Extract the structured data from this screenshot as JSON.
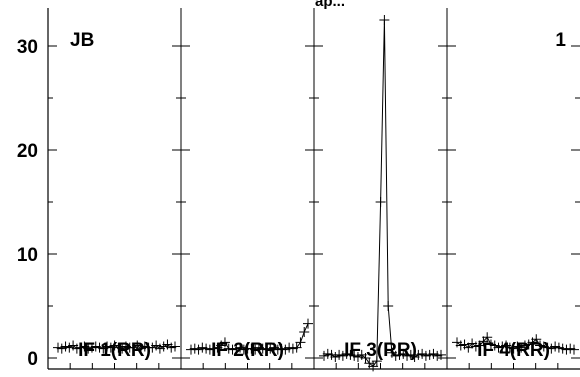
{
  "chart_data": {
    "type": "line",
    "title_fragment": "ap...",
    "corner_labels": {
      "left": "JB",
      "right": "1"
    },
    "ylim": [
      -1,
      33
    ],
    "yticks": [
      0,
      10,
      20,
      30
    ],
    "ytick_labels": [
      "0",
      "10",
      "20",
      "30"
    ],
    "grid": false,
    "panels": [
      {
        "name": "IF 1(RR)",
        "x": [
          0,
          1,
          2,
          3,
          4,
          5,
          6,
          7,
          8,
          9,
          10,
          11,
          12,
          13,
          14,
          15,
          16,
          17,
          18,
          19,
          20,
          21,
          22,
          23,
          24,
          25,
          26,
          27,
          28,
          29,
          30,
          31
        ],
        "values": [
          1.0,
          0.9,
          1.1,
          1.0,
          1.2,
          0.9,
          1.0,
          1.1,
          0.9,
          1.0,
          1.1,
          1.0,
          0.9,
          1.1,
          1.0,
          1.2,
          1.0,
          0.9,
          1.1,
          1.0,
          1.0,
          1.2,
          0.9,
          1.1,
          1.0,
          1.0,
          1.2,
          0.9,
          1.1,
          1.3,
          1.0,
          1.1
        ]
      },
      {
        "name": "IF 2(RR)",
        "x": [
          0,
          1,
          2,
          3,
          4,
          5,
          6,
          7,
          8,
          9,
          10,
          11,
          12,
          13,
          14,
          15,
          16,
          17,
          18,
          19,
          20,
          21,
          22,
          23,
          24,
          25,
          26,
          27,
          28,
          29,
          30,
          31
        ],
        "values": [
          0.8,
          0.9,
          0.8,
          1.0,
          0.9,
          0.8,
          0.9,
          1.0,
          1.2,
          1.5,
          0.9,
          0.8,
          0.9,
          1.0,
          0.8,
          0.9,
          0.9,
          0.8,
          1.0,
          0.9,
          0.8,
          0.9,
          1.0,
          0.8,
          0.9,
          0.8,
          1.0,
          0.9,
          1.0,
          1.5,
          2.5,
          3.3
        ]
      },
      {
        "name": "IF 3(RR)",
        "x": [
          0,
          1,
          2,
          3,
          4,
          5,
          6,
          7,
          8,
          9,
          10,
          11,
          12,
          13,
          14,
          15,
          16,
          17,
          18,
          19,
          20,
          21,
          22,
          23,
          24,
          25,
          26,
          27,
          28,
          29,
          30,
          31
        ],
        "values": [
          0.2,
          0.4,
          0.3,
          0.1,
          0.3,
          0.2,
          0.4,
          0.3,
          0.2,
          0.1,
          0.3,
          0.0,
          -0.5,
          -0.8,
          -0.3,
          15.0,
          32.5,
          5.0,
          0.5,
          0.2,
          0.3,
          0.4,
          0.2,
          0.3,
          0.1,
          0.3,
          0.4,
          0.2,
          0.3,
          0.4,
          0.2,
          0.3
        ]
      },
      {
        "name": "IF 4(RR)",
        "x": [
          0,
          1,
          2,
          3,
          4,
          5,
          6,
          7,
          8,
          9,
          10,
          11,
          12,
          13,
          14,
          15,
          16,
          17,
          18,
          19,
          20,
          21,
          22,
          23,
          24,
          25,
          26,
          27,
          28,
          29,
          30,
          31
        ],
        "values": [
          1.5,
          1.2,
          1.3,
          1.0,
          1.4,
          1.1,
          1.2,
          1.6,
          2.0,
          1.3,
          1.2,
          1.0,
          1.1,
          1.2,
          1.0,
          0.9,
          1.1,
          1.0,
          1.2,
          1.3,
          1.5,
          1.8,
          1.2,
          1.1,
          1.0,
          0.9,
          1.1,
          1.0,
          0.9,
          0.8,
          0.9,
          0.8
        ]
      }
    ]
  }
}
